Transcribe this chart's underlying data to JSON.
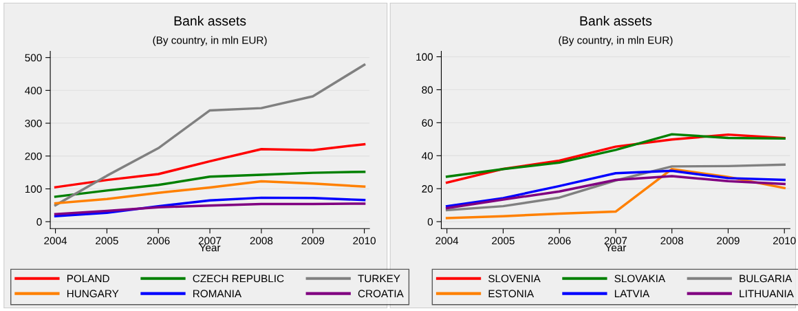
{
  "chart_data": [
    {
      "type": "line",
      "title": "Bank assets",
      "subtitle": "(By country, in mln EUR)",
      "xlabel": "Year",
      "x": [
        2004,
        2005,
        2006,
        2007,
        2008,
        2009,
        2010
      ],
      "xlim": [
        2003.9,
        2010.1
      ],
      "xticks": [
        2004,
        2005,
        2006,
        2007,
        2008,
        2009,
        2010
      ],
      "ylim": [
        -21,
        519
      ],
      "yticks": [
        0,
        100,
        200,
        300,
        400,
        500
      ],
      "grid": "y",
      "legend": "bottom",
      "marker": "none",
      "line_style": "solid",
      "series": [
        {
          "name": "POLAND",
          "color": "#ff0000",
          "values": [
            105,
            127,
            145,
            184,
            221,
            218,
            236
          ]
        },
        {
          "name": "CZECH REPUBLIC",
          "color": "#008000",
          "values": [
            76,
            95,
            112,
            137,
            143,
            149,
            152
          ]
        },
        {
          "name": "TURKEY",
          "color": "#808080",
          "values": [
            50,
            140,
            224,
            339,
            346,
            382,
            478
          ]
        },
        {
          "name": "HUNGARY",
          "color": "#ff8000",
          "values": [
            56,
            69,
            88,
            104,
            123,
            116,
            107
          ]
        },
        {
          "name": "ROMANIA",
          "color": "#0000ff",
          "values": [
            17,
            27,
            47,
            65,
            73,
            72,
            66
          ]
        },
        {
          "name": "CROATIA",
          "color": "#800080",
          "values": [
            23,
            33,
            44,
            49,
            54,
            54,
            55
          ]
        }
      ]
    },
    {
      "type": "line",
      "title": "Bank assets",
      "subtitle": "(By country, in mln EUR)",
      "xlabel": "Year",
      "x": [
        2004,
        2005,
        2006,
        2007,
        2008,
        2009,
        2010
      ],
      "xlim": [
        2003.9,
        2010.1
      ],
      "xticks": [
        2004,
        2005,
        2006,
        2007,
        2008,
        2009,
        2010
      ],
      "ylim": [
        -4.2,
        103.3
      ],
      "yticks": [
        0,
        20,
        40,
        60,
        80,
        100
      ],
      "grid": "y",
      "legend": "bottom",
      "marker": "none",
      "line_style": "solid",
      "series": [
        {
          "name": "SLOVENIA",
          "color": "#ff0000",
          "values": [
            23.7,
            32,
            37,
            45.5,
            49.8,
            52.8,
            50.7
          ]
        },
        {
          "name": "SLOVAKIA",
          "color": "#008000",
          "values": [
            27.3,
            31.9,
            35.8,
            43.5,
            53,
            50.8,
            50.4
          ]
        },
        {
          "name": "BULGARIA",
          "color": "#808080",
          "values": [
            7,
            9.4,
            14.6,
            25,
            33.5,
            33.7,
            34.6
          ]
        },
        {
          "name": "ESTONIA",
          "color": "#ff8000",
          "values": [
            2.2,
            3.3,
            4.9,
            6.1,
            31.9,
            27.1,
            20.4
          ]
        },
        {
          "name": "LATVIA",
          "color": "#0000ff",
          "values": [
            9.4,
            14.3,
            21.6,
            29.4,
            30.8,
            26.4,
            25.3
          ]
        },
        {
          "name": "LITHUANIA",
          "color": "#800080",
          "values": [
            8.2,
            13.4,
            18.3,
            25.3,
            27.6,
            24.6,
            22.8
          ]
        }
      ]
    }
  ]
}
